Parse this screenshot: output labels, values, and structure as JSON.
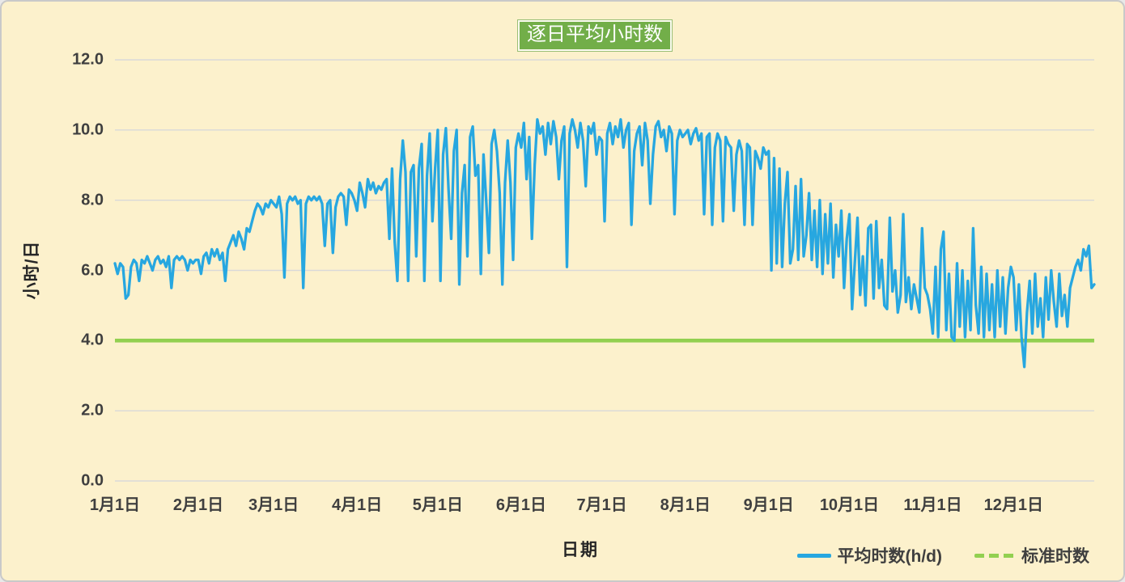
{
  "chart": {
    "colors": {
      "background": "#FCF1CC",
      "border": "#C9C9C9",
      "title_bg": "#72AE49",
      "title_text": "#FFFFFF",
      "gridline": "#D9D9D9",
      "axis_text": "#3F3F3F",
      "average_line": "#27A7E0",
      "standard_line": "#92D050"
    }
  },
  "chart_data": {
    "type": "line",
    "title": "逐日平均小时数",
    "xlabel": "日期",
    "ylabel": "小时/日",
    "ylim": [
      0,
      12
    ],
    "ytick_step": 2,
    "ytick_labels": [
      "0.0",
      "2.0",
      "4.0",
      "6.0",
      "8.0",
      "10.0",
      "12.0"
    ],
    "xtick_labels": [
      "1月1日",
      "2月1日",
      "3月1日",
      "4月1日",
      "5月1日",
      "6月1日",
      "7月1日",
      "8月1日",
      "9月1日",
      "10月1日",
      "11月1日",
      "12月1日"
    ],
    "grid": "horizontal",
    "legend_position": "bottom-right",
    "series": [
      {
        "name": "平均时数(h/d)",
        "type": "line",
        "style": "solid",
        "color": "#27A7E0",
        "values_by_month": [
          [
            6.2,
            5.9,
            6.2,
            6.1,
            5.2,
            5.3,
            6.1,
            6.3,
            6.2,
            5.7,
            6.3,
            6.2,
            6.4,
            6.2,
            6.0,
            6.3,
            6.4,
            6.2,
            6.3,
            6.1,
            6.4,
            5.5,
            6.3,
            6.4,
            6.3,
            6.4,
            6.3,
            6.0,
            6.3,
            6.2,
            6.3
          ],
          [
            6.3,
            5.9,
            6.4,
            6.5,
            6.2,
            6.6,
            6.4,
            6.6,
            6.3,
            6.5,
            5.7,
            6.6,
            6.8,
            7.0,
            6.7,
            7.1,
            6.9,
            6.6,
            7.2,
            7.1,
            7.4,
            7.7,
            7.9,
            7.8,
            7.6,
            7.9,
            7.8,
            8.0
          ],
          [
            7.9,
            7.8,
            8.1,
            7.6,
            5.8,
            7.9,
            8.1,
            8.0,
            8.1,
            7.9,
            8.0,
            5.5,
            7.9,
            8.1,
            8.0,
            8.1,
            8.0,
            8.1,
            7.9,
            6.7,
            7.9,
            8.0,
            6.5,
            7.8,
            8.1,
            8.2,
            8.1,
            7.3,
            8.3,
            8.2,
            8.0
          ],
          [
            7.7,
            8.5,
            8.2,
            7.8,
            8.6,
            8.3,
            8.5,
            8.2,
            8.4,
            8.3,
            8.5,
            8.6,
            6.9,
            8.9,
            6.8,
            5.7,
            8.6,
            9.7,
            8.8,
            5.7,
            8.8,
            9.0,
            6.4,
            8.9,
            9.6,
            5.7,
            8.7,
            9.9,
            7.4,
            8.9
          ],
          [
            10.0,
            5.7,
            9.3,
            10.05,
            8.3,
            6.9,
            9.4,
            10.0,
            5.6,
            8.2,
            9.0,
            6.4,
            9.8,
            10.1,
            8.7,
            9.0,
            5.9,
            9.3,
            8.0,
            6.5,
            9.6,
            10.0,
            9.4,
            8.2,
            5.6,
            8.5,
            9.7,
            8.5,
            6.3,
            9.5,
            9.9
          ],
          [
            9.5,
            10.2,
            8.6,
            9.8,
            6.9,
            9.0,
            10.3,
            9.9,
            10.1,
            9.3,
            10.2,
            9.6,
            10.25,
            9.8,
            8.6,
            9.7,
            10.1,
            6.1,
            9.9,
            10.3,
            10.0,
            9.5,
            10.2,
            9.7,
            8.4,
            10.1,
            9.9,
            10.2,
            9.3,
            9.8
          ],
          [
            9.7,
            7.4,
            9.9,
            10.2,
            9.6,
            10.1,
            9.8,
            10.3,
            9.5,
            10.0,
            10.2,
            7.3,
            9.4,
            9.9,
            10.1,
            9.0,
            10.2,
            9.7,
            7.9,
            9.3,
            10.1,
            10.25,
            9.8,
            10.0,
            9.4,
            10.1,
            9.9,
            7.6,
            9.7,
            10.0,
            9.8
          ],
          [
            9.9,
            10.0,
            9.6,
            9.9,
            10.05,
            9.7,
            9.9,
            7.6,
            9.8,
            9.9,
            7.3,
            9.5,
            9.9,
            9.7,
            7.4,
            9.8,
            9.6,
            9.5,
            7.7,
            9.3,
            9.7,
            9.4,
            7.3,
            9.6,
            9.5,
            7.3,
            9.4,
            9.2,
            8.9,
            9.5,
            9.3
          ],
          [
            9.4,
            6.0,
            9.2,
            6.2,
            8.9,
            6.1,
            7.9,
            8.8,
            6.2,
            6.6,
            8.4,
            6.3,
            8.6,
            6.4,
            7.0,
            8.2,
            6.3,
            7.7,
            6.1,
            8.0,
            5.9,
            7.6,
            6.2,
            7.9,
            5.8,
            7.3,
            6.4,
            7.7,
            5.5,
            6.9
          ],
          [
            7.6,
            4.9,
            6.2,
            7.5,
            5.3,
            6.4,
            5.0,
            7.2,
            7.3,
            5.2,
            7.4,
            5.5,
            6.3,
            5.0,
            4.9,
            7.5,
            5.4,
            6.0,
            4.8,
            5.3,
            7.6,
            5.1,
            5.8,
            4.9,
            5.6,
            5.2,
            4.8,
            7.2,
            5.5,
            5.3,
            4.9
          ],
          [
            4.2,
            6.1,
            4.1,
            6.6,
            7.1,
            4.3,
            5.9,
            4.1,
            4.0,
            6.2,
            4.4,
            6.0,
            4.1,
            5.7,
            4.3,
            7.2,
            5.0,
            4.2,
            6.1,
            4.1,
            5.9,
            4.3,
            5.6,
            4.1,
            6.0,
            4.4,
            5.8,
            4.2,
            5.5,
            6.1
          ],
          [
            5.8,
            4.3,
            5.6,
            4.1,
            3.25,
            4.8,
            5.7,
            4.2,
            5.9,
            4.4,
            5.2,
            4.1,
            5.8,
            4.6,
            6.0,
            5.1,
            4.4,
            5.9,
            4.7,
            5.3,
            4.4,
            5.5,
            5.8,
            6.1,
            6.3,
            6.0,
            6.6,
            6.4,
            6.7,
            5.5,
            5.6
          ]
        ]
      },
      {
        "name": "标准时数",
        "type": "constant-line",
        "style": "dashed",
        "color": "#92D050",
        "value": 4.0
      }
    ]
  }
}
